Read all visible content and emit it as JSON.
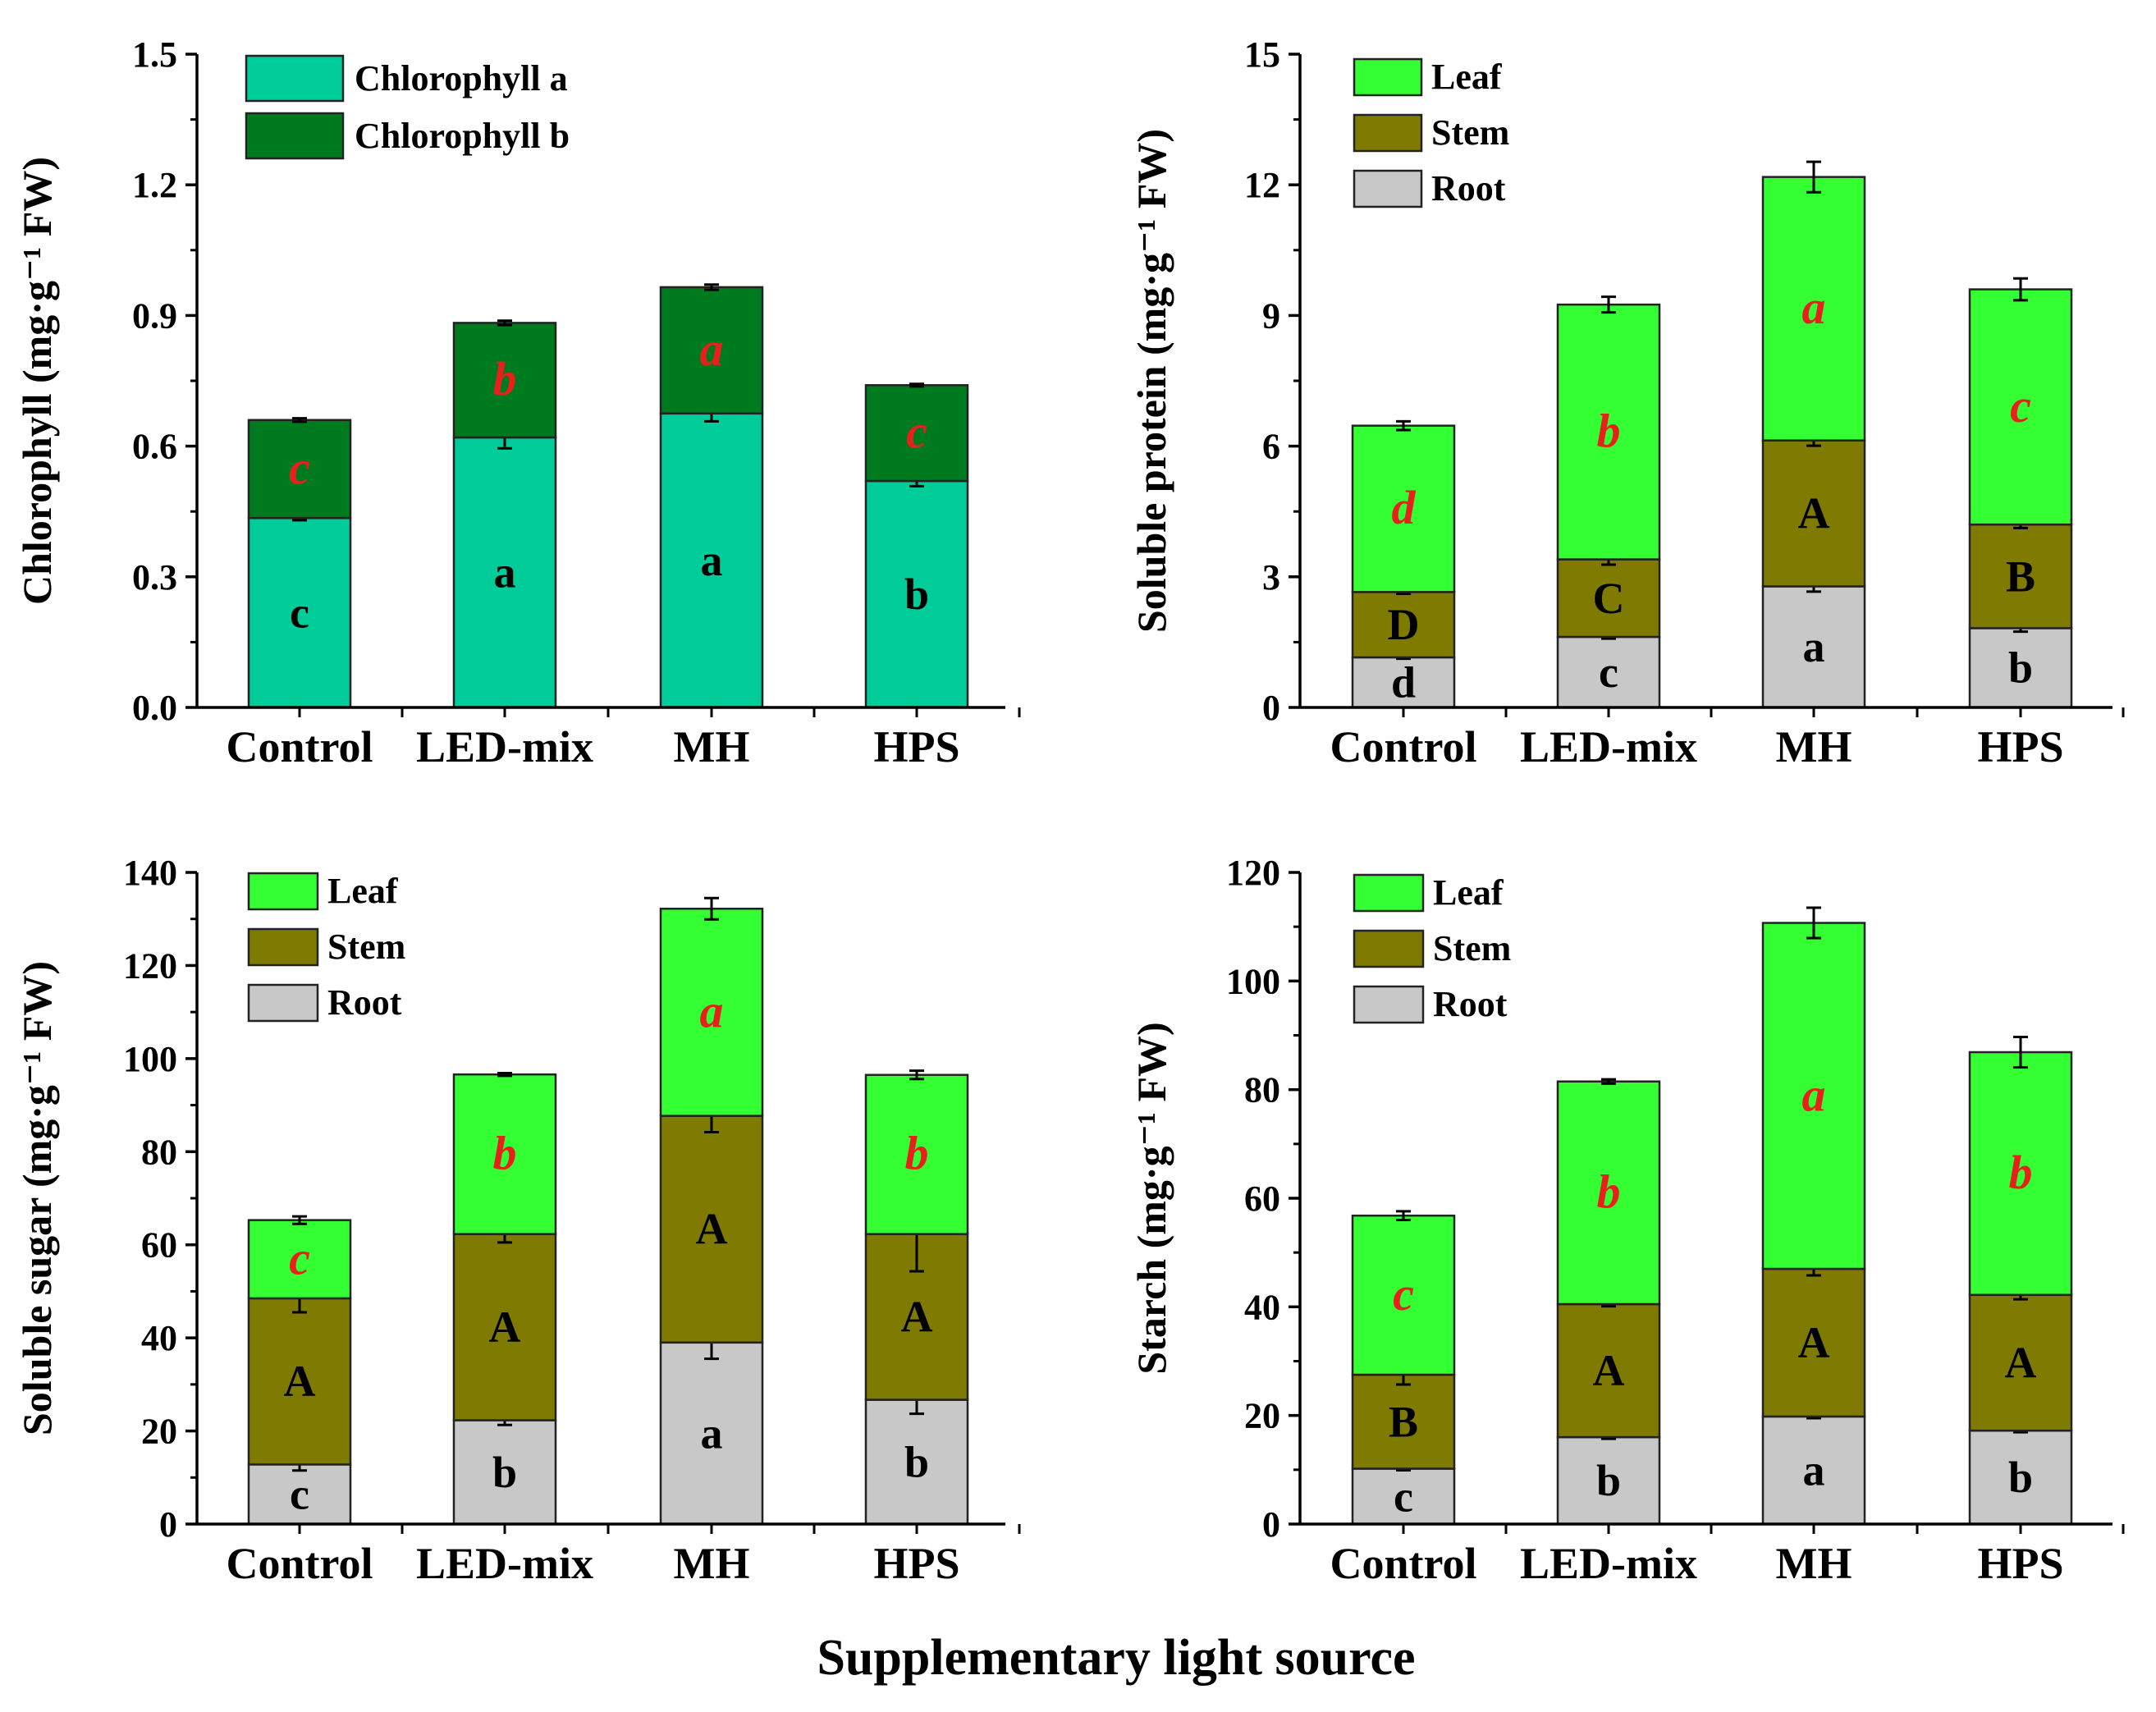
{
  "colors": {
    "chl_a": "#00CC99",
    "chl_b": "#007A1E",
    "leaf": "#33FF33",
    "stem": "#7F7A00",
    "root": "#C8C8C8",
    "red_letter": "#E8201C"
  },
  "x_axis_title": "Supplementary light source",
  "chart_data": [
    {
      "type": "bar",
      "stacked": true,
      "title": "",
      "ylabel": "Chlorophyll (mg·g⁻¹ FW)",
      "ylim": [
        0,
        1.5
      ],
      "yticks": [
        "0.0",
        "0.3",
        "0.6",
        "0.9",
        "1.2",
        "1.5"
      ],
      "categories": [
        "Control",
        "LED-mix",
        "MH",
        "HPS"
      ],
      "legend": [
        "Chlorophyll a",
        "Chlorophyll b"
      ],
      "series": [
        {
          "name": "Chlorophyll a",
          "color": "#00CC99",
          "values": [
            0.435,
            0.62,
            0.675,
            0.52
          ],
          "errors": [
            0.005,
            0.025,
            0.018,
            0.012
          ],
          "letters": [
            "c",
            "a",
            "a",
            "b"
          ],
          "letter_style": "black"
        },
        {
          "name": "Chlorophyll b",
          "color": "#007A1E",
          "values": [
            0.225,
            0.263,
            0.29,
            0.22
          ],
          "errors": [
            0.004,
            0.005,
            0.006,
            0.003
          ],
          "letters": [
            "c",
            "b",
            "a",
            "c"
          ],
          "letter_style": "red"
        }
      ]
    },
    {
      "type": "bar",
      "stacked": true,
      "title": "",
      "ylabel": "Soluble protein (mg·g⁻¹ FW)",
      "ylim": [
        0,
        15
      ],
      "yticks": [
        "0",
        "3",
        "6",
        "9",
        "12",
        "15"
      ],
      "categories": [
        "Control",
        "LED-mix",
        "MH",
        "HPS"
      ],
      "legend": [
        "Leaf",
        "Stem",
        "Root"
      ],
      "series": [
        {
          "name": "Root",
          "color": "#C8C8C8",
          "values": [
            1.15,
            1.62,
            2.78,
            1.82
          ],
          "errors": [
            0.03,
            0.04,
            0.12,
            0.08
          ],
          "letters": [
            "d",
            "c",
            "a",
            "b"
          ],
          "letter_style": "black"
        },
        {
          "name": "Stem",
          "color": "#7F7A00",
          "values": [
            1.5,
            1.78,
            3.35,
            2.38
          ],
          "errors": [
            0.04,
            0.12,
            0.12,
            0.08
          ],
          "letters": [
            "D",
            "C",
            "A",
            "B"
          ],
          "letter_style": "black"
        },
        {
          "name": "Leaf",
          "color": "#33FF33",
          "values": [
            3.82,
            5.85,
            6.05,
            5.4
          ],
          "errors": [
            0.1,
            0.18,
            0.35,
            0.25
          ],
          "letters": [
            "d",
            "b",
            "a",
            "c"
          ],
          "letter_style": "red"
        }
      ]
    },
    {
      "type": "bar",
      "stacked": true,
      "title": "",
      "ylabel": "Soluble sugar (mg·g⁻¹ FW)",
      "ylim": [
        0,
        140
      ],
      "yticks": [
        "0",
        "20",
        "40",
        "60",
        "80",
        "100",
        "120",
        "140"
      ],
      "categories": [
        "Control",
        "LED-mix",
        "MH",
        "HPS"
      ],
      "legend": [
        "Leaf",
        "Stem",
        "Root"
      ],
      "series": [
        {
          "name": "Root",
          "color": "#C8C8C8",
          "values": [
            12.8,
            22.3,
            39.0,
            26.7
          ],
          "errors": [
            1.3,
            1.0,
            3.5,
            3.0
          ],
          "letters": [
            "c",
            "b",
            "a",
            "b"
          ],
          "letter_style": "black"
        },
        {
          "name": "Stem",
          "color": "#7F7A00",
          "values": [
            35.7,
            40.0,
            48.7,
            35.6
          ],
          "errors": [
            3.0,
            1.8,
            3.5,
            8.0
          ],
          "letters": [
            "A",
            "A",
            "A",
            "A"
          ],
          "letter_style": "black"
        },
        {
          "name": "Leaf",
          "color": "#33FF33",
          "values": [
            16.8,
            34.3,
            44.5,
            34.2
          ],
          "errors": [
            0.8,
            0.3,
            2.3,
            0.9
          ],
          "letters": [
            "c",
            "b",
            "a",
            "b"
          ],
          "letter_style": "red"
        }
      ]
    },
    {
      "type": "bar",
      "stacked": true,
      "title": "",
      "ylabel": "Starch (mg·g⁻¹ FW)",
      "ylim": [
        0,
        120
      ],
      "yticks": [
        "0",
        "20",
        "40",
        "60",
        "80",
        "100",
        "120"
      ],
      "categories": [
        "Control",
        "LED-mix",
        "MH",
        "HPS"
      ],
      "legend": [
        "Leaf",
        "Stem",
        "Root"
      ],
      "series": [
        {
          "name": "Root",
          "color": "#C8C8C8",
          "values": [
            10.2,
            16.0,
            19.8,
            17.2
          ],
          "errors": [
            0.3,
            0.3,
            0.3,
            0.3
          ],
          "letters": [
            "c",
            "b",
            "a",
            "b"
          ],
          "letter_style": "black"
        },
        {
          "name": "Stem",
          "color": "#7F7A00",
          "values": [
            17.3,
            24.5,
            27.2,
            25.0
          ],
          "errors": [
            1.8,
            0.4,
            1.2,
            0.8
          ],
          "letters": [
            "B",
            "A",
            "A",
            "A"
          ],
          "letter_style": "black"
        },
        {
          "name": "Leaf",
          "color": "#33FF33",
          "values": [
            29.3,
            41.0,
            63.7,
            44.7
          ],
          "errors": [
            0.8,
            0.4,
            2.8,
            2.8
          ],
          "letters": [
            "c",
            "b",
            "a",
            "b"
          ],
          "letter_style": "red"
        }
      ]
    }
  ]
}
